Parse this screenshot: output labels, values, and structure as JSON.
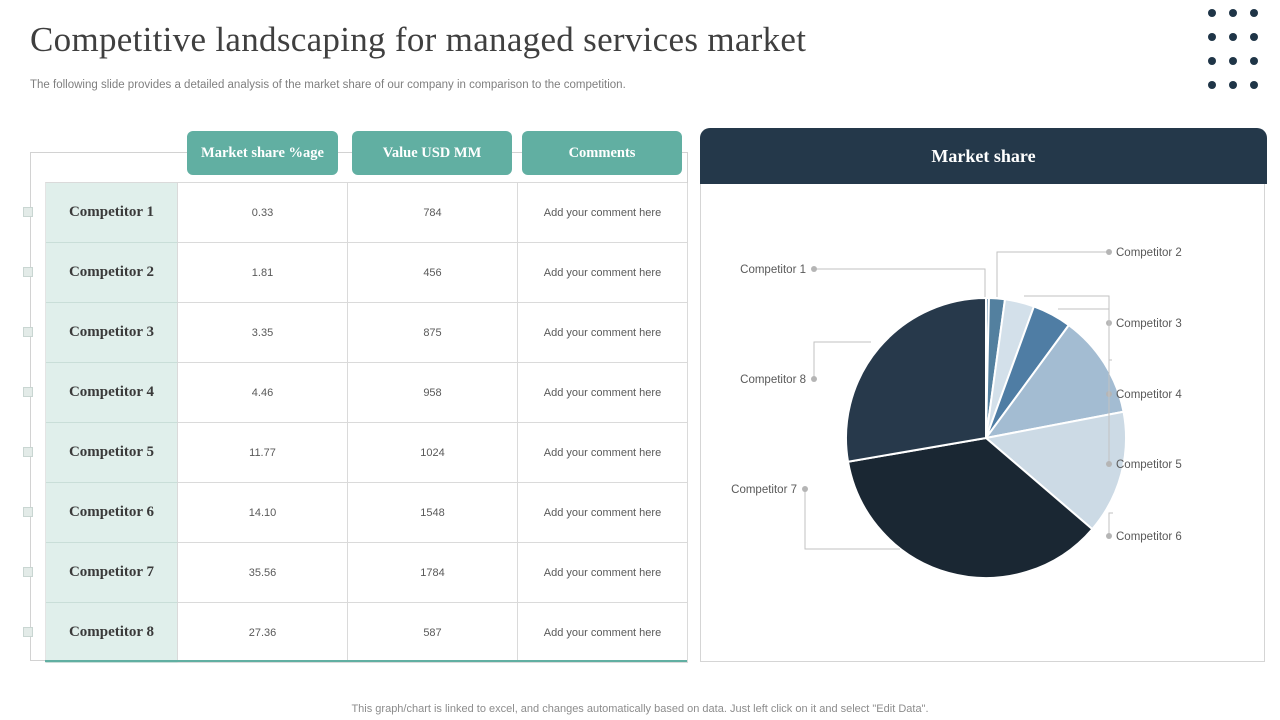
{
  "slide": {
    "title": "Competitive landscaping for managed services market",
    "subtitle": "The following slide provides a detailed analysis of the market share of our company in comparison to the competition.",
    "footer": "This graph/chart is linked to excel, and changes automatically based on data. Just left click on it and select \"Edit Data\"."
  },
  "table": {
    "columns": [
      "Market share %age",
      "Value USD MM",
      "Comments"
    ],
    "rows": [
      {
        "name": "Competitor 1",
        "share": "0.33",
        "value": "784",
        "comment": "Add your comment here"
      },
      {
        "name": "Competitor 2",
        "share": "1.81",
        "value": "456",
        "comment": "Add your comment here"
      },
      {
        "name": "Competitor 3",
        "share": "3.35",
        "value": "875",
        "comment": "Add your comment here"
      },
      {
        "name": "Competitor 4",
        "share": "4.46",
        "value": "958",
        "comment": "Add your comment here"
      },
      {
        "name": "Competitor 5",
        "share": "11.77",
        "value": "1024",
        "comment": "Add your comment here"
      },
      {
        "name": "Competitor 6",
        "share": "14.10",
        "value": "1548",
        "comment": "Add your comment here"
      },
      {
        "name": "Competitor 7",
        "share": "35.56",
        "value": "1784",
        "comment": "Add your comment here"
      },
      {
        "name": "Competitor 8",
        "share": "27.36",
        "value": "587",
        "comment": "Add your comment here"
      }
    ]
  },
  "chart_data": {
    "type": "pie",
    "title": "Market share",
    "categories": [
      "Competitor 1",
      "Competitor 2",
      "Competitor 3",
      "Competitor 4",
      "Competitor 5",
      "Competitor 6",
      "Competitor 7",
      "Competitor 8"
    ],
    "values": [
      0.33,
      1.81,
      3.35,
      4.46,
      11.77,
      14.1,
      35.56,
      27.36
    ],
    "colors": [
      "#6f94b1",
      "#53809f",
      "#d3e0ea",
      "#4f7da4",
      "#a3bcd2",
      "#ccdae5",
      "#1a2733",
      "#27394b"
    ],
    "start_angle_deg": 0,
    "direction": "clockwise",
    "legend_position": "callout-labels"
  },
  "theme": {
    "teal": "#61afa2",
    "teal_light": "#e0efeb",
    "navy": "#24384a",
    "leader_line": "#c2c2c2",
    "label_text": "#595959"
  }
}
